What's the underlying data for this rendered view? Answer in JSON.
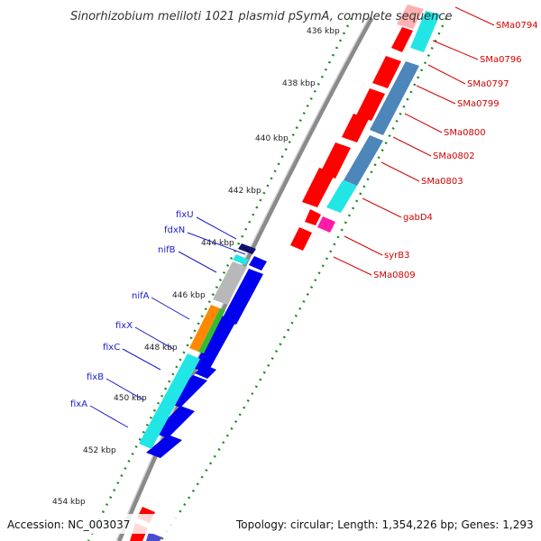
{
  "title": "Sinorhizobium meliloti 1021 plasmid pSymA, complete sequence",
  "footer": {
    "accession": "Accession: NC_003037",
    "topology": "Topology: circular; Length: 1,354,226 bp; Genes: 1,293"
  },
  "colors": {
    "forward_red": "#ff0000",
    "reverse_blue": "#0000ee",
    "cyan": "#22e6e6",
    "steel_blue": "#4d86b8",
    "gray": "#b8b8b8",
    "orange": "#ff8800",
    "green": "#33bb33",
    "magenta": "#ff1aa8",
    "navy": "#10106e",
    "tick_green": "#1a8c1a"
  },
  "kbp_ticks": [
    "436 kbp",
    "438 kbp",
    "440 kbp",
    "442 kbp",
    "444 kbp",
    "446 kbp",
    "448 kbp",
    "450 kbp",
    "452 kbp",
    "454 kbp"
  ],
  "right_genes": [
    "SMa0794",
    "SMa0796",
    "SMa0797",
    "SMa0799",
    "SMa0800",
    "SMa0802",
    "SMa0803",
    "gabD4",
    "syrB3",
    "SMa0809"
  ],
  "left_genes": [
    "fixU",
    "fdxN",
    "nifB",
    "nifA",
    "fixX",
    "fixC",
    "fixB",
    "fixA"
  ]
}
